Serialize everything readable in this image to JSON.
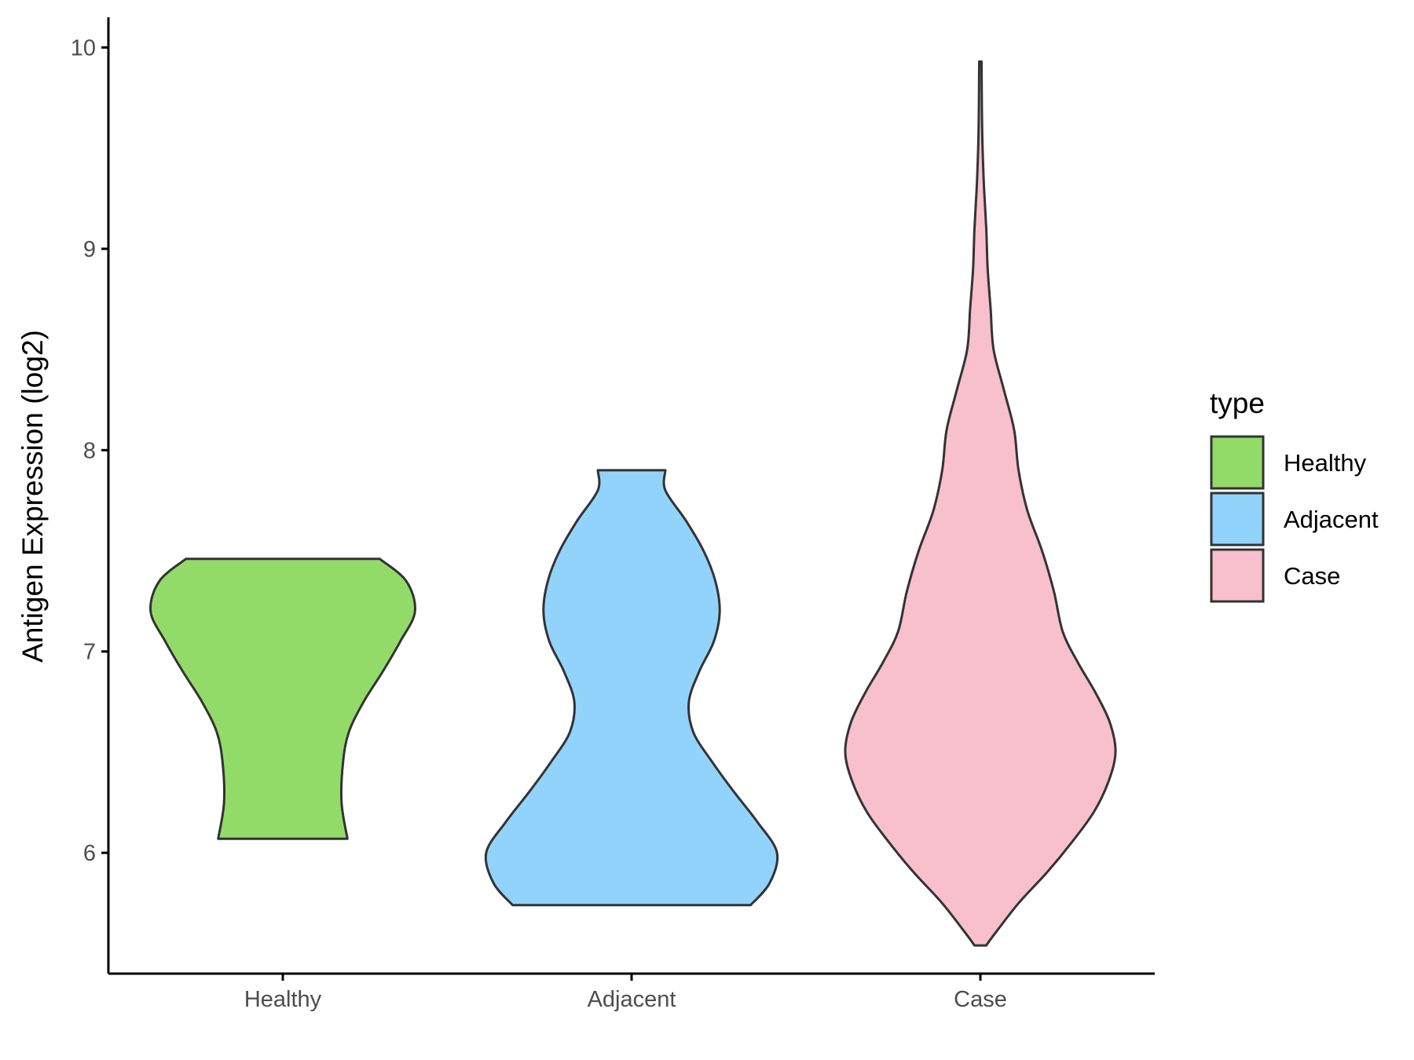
{
  "chart_data": {
    "type": "violin",
    "ylabel": "Antigen Expression (log2)",
    "xlabel": "",
    "ylim": [
      5.4,
      10.15
    ],
    "yticks": [
      6,
      7,
      8,
      9,
      10
    ],
    "grid": false,
    "legend": {
      "title": "type",
      "position": "right"
    },
    "categories": [
      "Healthy",
      "Adjacent",
      "Case"
    ],
    "series": [
      {
        "name": "Healthy",
        "color": "#93DB69",
        "min": 6.07,
        "max": 7.46,
        "density": [
          [
            6.07,
            0.44
          ],
          [
            6.25,
            0.4
          ],
          [
            6.45,
            0.41
          ],
          [
            6.6,
            0.45
          ],
          [
            6.75,
            0.55
          ],
          [
            6.9,
            0.68
          ],
          [
            7.05,
            0.8
          ],
          [
            7.2,
            0.9
          ],
          [
            7.35,
            0.84
          ],
          [
            7.46,
            0.66
          ]
        ]
      },
      {
        "name": "Adjacent",
        "color": "#92D3FC",
        "min": 5.74,
        "max": 7.9,
        "density": [
          [
            5.74,
            0.81
          ],
          [
            5.85,
            0.94
          ],
          [
            6.0,
            0.99
          ],
          [
            6.15,
            0.86
          ],
          [
            6.3,
            0.7
          ],
          [
            6.45,
            0.55
          ],
          [
            6.6,
            0.42
          ],
          [
            6.75,
            0.39
          ],
          [
            6.9,
            0.46
          ],
          [
            7.05,
            0.56
          ],
          [
            7.2,
            0.6
          ],
          [
            7.35,
            0.57
          ],
          [
            7.5,
            0.49
          ],
          [
            7.65,
            0.37
          ],
          [
            7.8,
            0.23
          ],
          [
            7.9,
            0.23
          ]
        ]
      },
      {
        "name": "Case",
        "color": "#F7C0CC",
        "min": 5.54,
        "max": 9.93,
        "density": [
          [
            5.54,
            0.04
          ],
          [
            5.6,
            0.1
          ],
          [
            5.75,
            0.26
          ],
          [
            5.9,
            0.45
          ],
          [
            6.05,
            0.62
          ],
          [
            6.2,
            0.77
          ],
          [
            6.35,
            0.87
          ],
          [
            6.5,
            0.92
          ],
          [
            6.65,
            0.88
          ],
          [
            6.8,
            0.78
          ],
          [
            6.95,
            0.66
          ],
          [
            7.1,
            0.56
          ],
          [
            7.3,
            0.5
          ],
          [
            7.5,
            0.42
          ],
          [
            7.7,
            0.32
          ],
          [
            7.9,
            0.26
          ],
          [
            8.1,
            0.23
          ],
          [
            8.3,
            0.16
          ],
          [
            8.5,
            0.09
          ],
          [
            8.7,
            0.07
          ],
          [
            8.9,
            0.05
          ],
          [
            9.1,
            0.04
          ],
          [
            9.3,
            0.025
          ],
          [
            9.5,
            0.015
          ],
          [
            9.7,
            0.01
          ],
          [
            9.93,
            0.008
          ]
        ]
      }
    ]
  }
}
